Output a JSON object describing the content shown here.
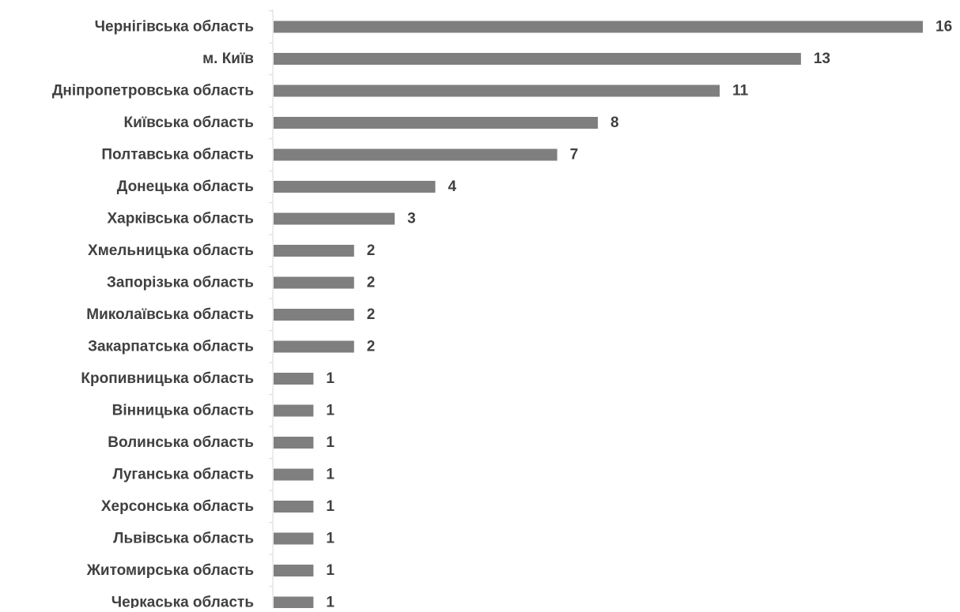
{
  "chart_data": {
    "type": "bar",
    "orientation": "horizontal",
    "title": "",
    "xlabel": "",
    "ylabel": "",
    "categories": [
      "Чернігівська область",
      "м. Київ",
      "Дніпропетровська область",
      "Київська область",
      "Полтавська область",
      "Донецька область",
      "Харківська область",
      "Хмельницька область",
      "Запорізька область",
      "Миколаївська область",
      "Закарпатська область",
      "Кропивницька область",
      "Вінницька область",
      "Волинська область",
      "Луганська область",
      "Херсонська область",
      "Львівська область",
      "Житомирська область",
      "Черкаська область"
    ],
    "values": [
      16,
      13,
      11,
      8,
      7,
      4,
      3,
      2,
      2,
      2,
      2,
      1,
      1,
      1,
      1,
      1,
      1,
      1,
      1
    ],
    "xlim": [
      0,
      16
    ],
    "grid": false,
    "legend": "none",
    "bar_color": "#7f7f7f",
    "axis_color": "#d9d9d9",
    "label_color": "#404040"
  }
}
